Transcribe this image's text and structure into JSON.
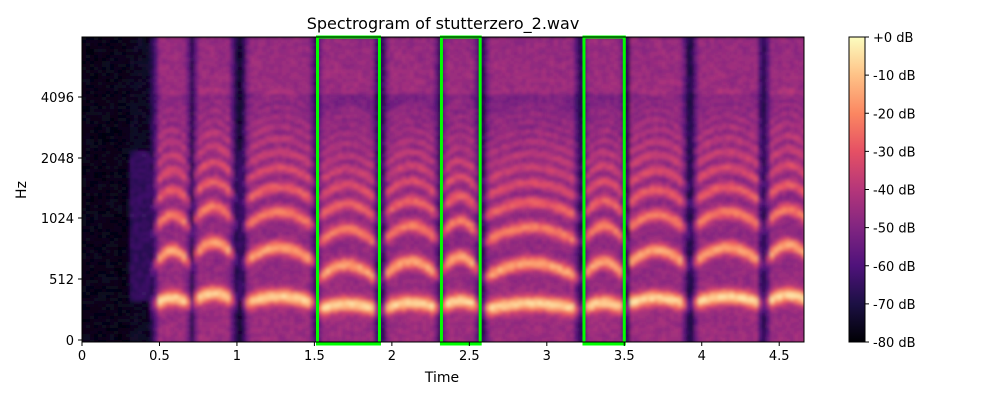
{
  "chart_data": {
    "type": "heatmap",
    "title": "Spectrogram of stutterzero_2.wav",
    "xlabel": "Time",
    "ylabel": "Hz",
    "x_ticks": [
      {
        "value": 0,
        "label": "0"
      },
      {
        "value": 0.5,
        "label": "0.5"
      },
      {
        "value": 1,
        "label": "1"
      },
      {
        "value": 1.5,
        "label": "1.5"
      },
      {
        "value": 2,
        "label": "2"
      },
      {
        "value": 2.5,
        "label": "2.5"
      },
      {
        "value": 3,
        "label": "3"
      },
      {
        "value": 3.5,
        "label": "3.5"
      },
      {
        "value": 4,
        "label": "4"
      },
      {
        "value": 4.5,
        "label": "4.5"
      }
    ],
    "y_ticks": [
      {
        "value": 0,
        "label": "0"
      },
      {
        "value": 512,
        "label": "512"
      },
      {
        "value": 1024,
        "label": "1024"
      },
      {
        "value": 2048,
        "label": "2048"
      },
      {
        "value": 4096,
        "label": "4096"
      }
    ],
    "xlim": [
      0,
      4.66
    ],
    "y_scale": "log-like (librosa 'log' display)",
    "colormap": "magma",
    "colorbar": {
      "range": [
        -80,
        0
      ],
      "ticks": [
        "+0 dB",
        "-10 dB",
        "-20 dB",
        "-30 dB",
        "-40 dB",
        "-50 dB",
        "-60 dB",
        "-70 dB",
        "-80 dB"
      ]
    },
    "highlight_boxes": [
      {
        "t_start": 1.52,
        "t_end": 1.92
      },
      {
        "t_start": 2.32,
        "t_end": 2.57
      },
      {
        "t_start": 3.24,
        "t_end": 3.5
      }
    ],
    "highlight_color": "#00ff00",
    "voiced_segments": [
      {
        "t0": 0.47,
        "t1": 0.7,
        "f0": 300
      },
      {
        "t0": 0.72,
        "t1": 0.98,
        "f0": 330
      },
      {
        "t0": 1.05,
        "t1": 1.5,
        "f0": 310
      },
      {
        "t0": 1.52,
        "t1": 1.9,
        "f0": 255
      },
      {
        "t0": 1.95,
        "t1": 2.3,
        "f0": 265
      },
      {
        "t0": 2.32,
        "t1": 2.56,
        "f0": 280
      },
      {
        "t0": 2.6,
        "t1": 3.2,
        "f0": 260
      },
      {
        "t0": 3.24,
        "t1": 3.5,
        "f0": 265
      },
      {
        "t0": 3.52,
        "t1": 3.9,
        "f0": 300
      },
      {
        "t0": 3.95,
        "t1": 4.38,
        "f0": 310
      },
      {
        "t0": 4.42,
        "t1": 4.7,
        "f0": 320
      }
    ]
  }
}
